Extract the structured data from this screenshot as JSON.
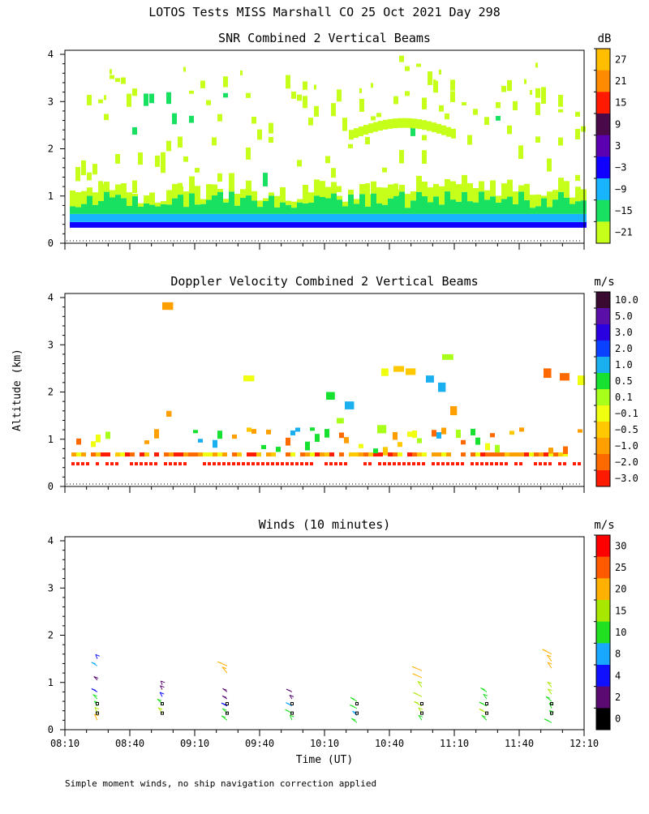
{
  "main_title": "LOTOS Tests MISS Marshall CO  25 Oct 2021 Day 298",
  "footnote": "Simple moment winds, no ship navigation correction applied",
  "chart_data": [
    {
      "type": "heatmap",
      "title": "SNR Combined 2 Vertical Beams",
      "ylabel": "",
      "ylim": [
        0,
        4
      ],
      "yticks": [
        "0",
        "1",
        "2",
        "3",
        "4"
      ],
      "x_range_minutes": [
        490,
        730
      ],
      "colorbar": {
        "unit": "dB",
        "labels": [
          "27",
          "21",
          "15",
          "9",
          "3",
          "−3",
          "−9",
          "−15",
          "−21"
        ],
        "colors": [
          "#ffbf00",
          "#ff8c00",
          "#ff1a00",
          "#4a0a4a",
          "#5a00b0",
          "#1000ff",
          "#18b4ff",
          "#18e060",
          "#c6ff1a"
        ]
      }
    },
    {
      "type": "heatmap",
      "title": "Doppler Velocity Combined 2 Vertical Beams",
      "ylabel": "Altitude (km)",
      "ylim": [
        0,
        4
      ],
      "yticks": [
        "0",
        "1",
        "2",
        "3",
        "4"
      ],
      "x_range_minutes": [
        490,
        730
      ],
      "colorbar": {
        "unit": "m/s",
        "labels": [
          "10.0",
          "5.0",
          "3.0",
          "2.0",
          "1.0",
          "0.5",
          "0.1",
          "−0.1",
          "−0.5",
          "−1.0",
          "−2.0",
          "−3.0"
        ],
        "colors": [
          "#3a0a30",
          "#5a10a8",
          "#2a00e0",
          "#0a40ff",
          "#1ab0f0",
          "#16e030",
          "#a8ff1a",
          "#f0ff10",
          "#ffc800",
          "#ffa000",
          "#ff6a00",
          "#ff1a00"
        ]
      }
    },
    {
      "type": "scatter",
      "title": "Winds (10 minutes)",
      "ylabel": "",
      "ylim": [
        0,
        4
      ],
      "yticks": [
        "0",
        "1",
        "2",
        "3",
        "4"
      ],
      "x_range_minutes": [
        490,
        730
      ],
      "xlabel": "Time (UT)",
      "xticks": [
        "08:10",
        "08:40",
        "09:10",
        "09:40",
        "10:10",
        "10:40",
        "11:10",
        "11:40",
        "12:10"
      ],
      "colorbar": {
        "unit": "m/s",
        "labels": [
          "30",
          "25",
          "20",
          "15",
          "10",
          "8",
          "4",
          "2",
          "0"
        ],
        "colors": [
          "#ff0000",
          "#ff5a00",
          "#ffb000",
          "#a8e800",
          "#20e020",
          "#18a8ff",
          "#1010ff",
          "#5a0a70",
          "#000000"
        ]
      },
      "barbs": [
        {
          "t": 505,
          "alts": [
            0.2,
            0.35,
            0.5,
            0.65,
            0.8,
            1.05,
            1.35,
            1.5
          ],
          "speeds": [
            20,
            17,
            12,
            10,
            5,
            2,
            8,
            6
          ]
        },
        {
          "t": 535,
          "alts": [
            0.35,
            0.55,
            0.7,
            0.85,
            0.95
          ],
          "speeds": [
            16,
            12,
            6,
            3,
            2
          ]
        },
        {
          "t": 565,
          "alts": [
            0.2,
            0.35,
            0.5,
            0.65,
            0.8,
            1.2,
            1.35
          ],
          "speeds": [
            12,
            11,
            4,
            2,
            3,
            22,
            21
          ]
        },
        {
          "t": 595,
          "alts": [
            0.2,
            0.35,
            0.5,
            0.65,
            0.8
          ],
          "speeds": [
            12,
            10,
            8,
            3,
            2
          ]
        },
        {
          "t": 625,
          "alts": [
            0.15,
            0.3,
            0.45,
            0.6
          ],
          "speeds": [
            10,
            9,
            10,
            10
          ]
        },
        {
          "t": 655,
          "alts": [
            0.2,
            0.35,
            0.5,
            0.7,
            0.9,
            1.1,
            1.25
          ],
          "speeds": [
            12,
            15,
            18,
            17,
            19,
            20,
            21
          ]
        },
        {
          "t": 685,
          "alts": [
            0.2,
            0.35,
            0.5,
            0.65,
            0.8
          ],
          "speeds": [
            14,
            15,
            13,
            11,
            10
          ]
        },
        {
          "t": 715,
          "alts": [
            0.15,
            0.3,
            0.45,
            0.6,
            0.75,
            0.9,
            1.3,
            1.45,
            1.6
          ],
          "speeds": [
            11,
            12,
            13,
            14,
            15,
            15,
            20,
            22,
            23
          ]
        }
      ]
    }
  ]
}
